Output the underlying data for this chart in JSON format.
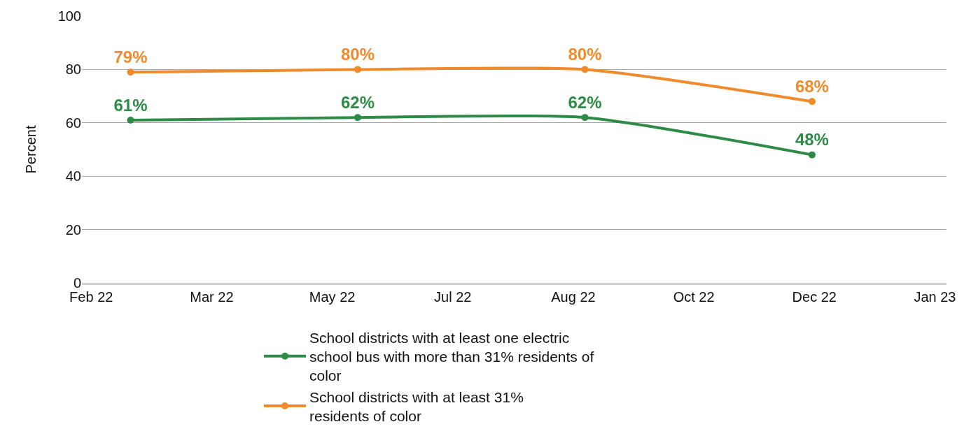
{
  "chart_data": {
    "type": "line",
    "ylabel": "Percent",
    "x": [
      "2022-02-18",
      "2022-05-27",
      "2022-09-02",
      "2022-12-09"
    ],
    "xlim": [
      "2022-01-28",
      "2023-02-05"
    ],
    "xticks": [
      {
        "value": "2022-02-01",
        "label": "Feb 22"
      },
      {
        "value": "2022-03-25",
        "label": "Mar 22"
      },
      {
        "value": "2022-05-16",
        "label": "May 22"
      },
      {
        "value": "2022-07-07",
        "label": "Jul 22"
      },
      {
        "value": "2022-08-28",
        "label": "Aug 22"
      },
      {
        "value": "2022-10-19",
        "label": "Oct 22"
      },
      {
        "value": "2022-12-10",
        "label": "Dec 22"
      },
      {
        "value": "2023-01-31",
        "label": "Jan 23"
      }
    ],
    "ylim": [
      0,
      100
    ],
    "yticks": [
      0,
      20,
      40,
      60,
      80,
      100
    ],
    "grid": "y",
    "legend": "bottom",
    "marker": "circle",
    "line_style": "solid",
    "series": [
      {
        "name": "School districts with at least one electric school bus with more than 31% residents of color",
        "color": "#2e8b47",
        "values": [
          61,
          62,
          62,
          48
        ],
        "value_labels": [
          "61%",
          "62%",
          "62%",
          "48%"
        ]
      },
      {
        "name": "School districts with at least 31% residents of color",
        "color": "#f08a2a",
        "values": [
          79,
          80,
          80,
          68
        ],
        "value_labels": [
          "79%",
          "80%",
          "80%",
          "68%"
        ]
      }
    ]
  }
}
